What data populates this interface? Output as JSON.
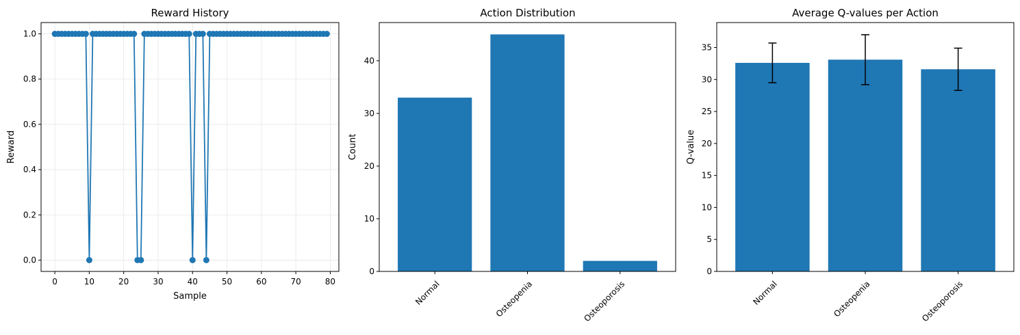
{
  "chart_data": [
    {
      "type": "line",
      "title": "Reward History",
      "xlabel": "Sample",
      "ylabel": "Reward",
      "xlim": [
        -4,
        82.5
      ],
      "ylim": [
        -0.05,
        1.05
      ],
      "xticks": [
        "0",
        "10",
        "20",
        "30",
        "40",
        "50",
        "60",
        "70",
        "80"
      ],
      "yticks": [
        "0.0",
        "0.2",
        "0.4",
        "0.6",
        "0.8",
        "1.0"
      ],
      "grid": true,
      "markers": true,
      "color": "#1f77b4",
      "x": [
        0,
        1,
        2,
        3,
        4,
        5,
        6,
        7,
        8,
        9,
        10,
        11,
        12,
        13,
        14,
        15,
        16,
        17,
        18,
        19,
        20,
        21,
        22,
        23,
        24,
        25,
        26,
        27,
        28,
        29,
        30,
        31,
        32,
        33,
        34,
        35,
        36,
        37,
        38,
        39,
        40,
        41,
        42,
        43,
        44,
        45,
        46,
        47,
        48,
        49,
        50,
        51,
        52,
        53,
        54,
        55,
        56,
        57,
        58,
        59,
        60,
        61,
        62,
        63,
        64,
        65,
        66,
        67,
        68,
        69,
        70,
        71,
        72,
        73,
        74,
        75,
        76,
        77,
        78,
        79
      ],
      "y": [
        1,
        1,
        1,
        1,
        1,
        1,
        1,
        1,
        1,
        1,
        0,
        1,
        1,
        1,
        1,
        1,
        1,
        1,
        1,
        1,
        1,
        1,
        1,
        1,
        0,
        0,
        1,
        1,
        1,
        1,
        1,
        1,
        1,
        1,
        1,
        1,
        1,
        1,
        1,
        1,
        0,
        1,
        1,
        1,
        0,
        1,
        1,
        1,
        1,
        1,
        1,
        1,
        1,
        1,
        1,
        1,
        1,
        1,
        1,
        1,
        1,
        1,
        1,
        1,
        1,
        1,
        1,
        1,
        1,
        1,
        1,
        1,
        1,
        1,
        1,
        1,
        1,
        1,
        1,
        1
      ]
    },
    {
      "type": "bar",
      "title": "Action Distribution",
      "xlabel": "",
      "ylabel": "Count",
      "categories": [
        "Normal",
        "Osteopenia",
        "Osteoporosis"
      ],
      "values": [
        33,
        45,
        2
      ],
      "ylim": [
        0,
        47.25
      ],
      "yticks": [
        "0",
        "10",
        "20",
        "30",
        "40"
      ],
      "grid": false,
      "color": "#1f77b4"
    },
    {
      "type": "bar",
      "title": "Average Q-values per Action",
      "xlabel": "",
      "ylabel": "Q-value",
      "categories": [
        "Normal",
        "Osteopenia",
        "Osteoporosis"
      ],
      "values": [
        32.6,
        33.1,
        31.6
      ],
      "errors": [
        3.1,
        3.9,
        3.3
      ],
      "ylim": [
        0,
        38.9
      ],
      "yticks": [
        "0",
        "5",
        "10",
        "15",
        "20",
        "25",
        "30",
        "35"
      ],
      "grid": false,
      "color": "#1f77b4"
    }
  ]
}
